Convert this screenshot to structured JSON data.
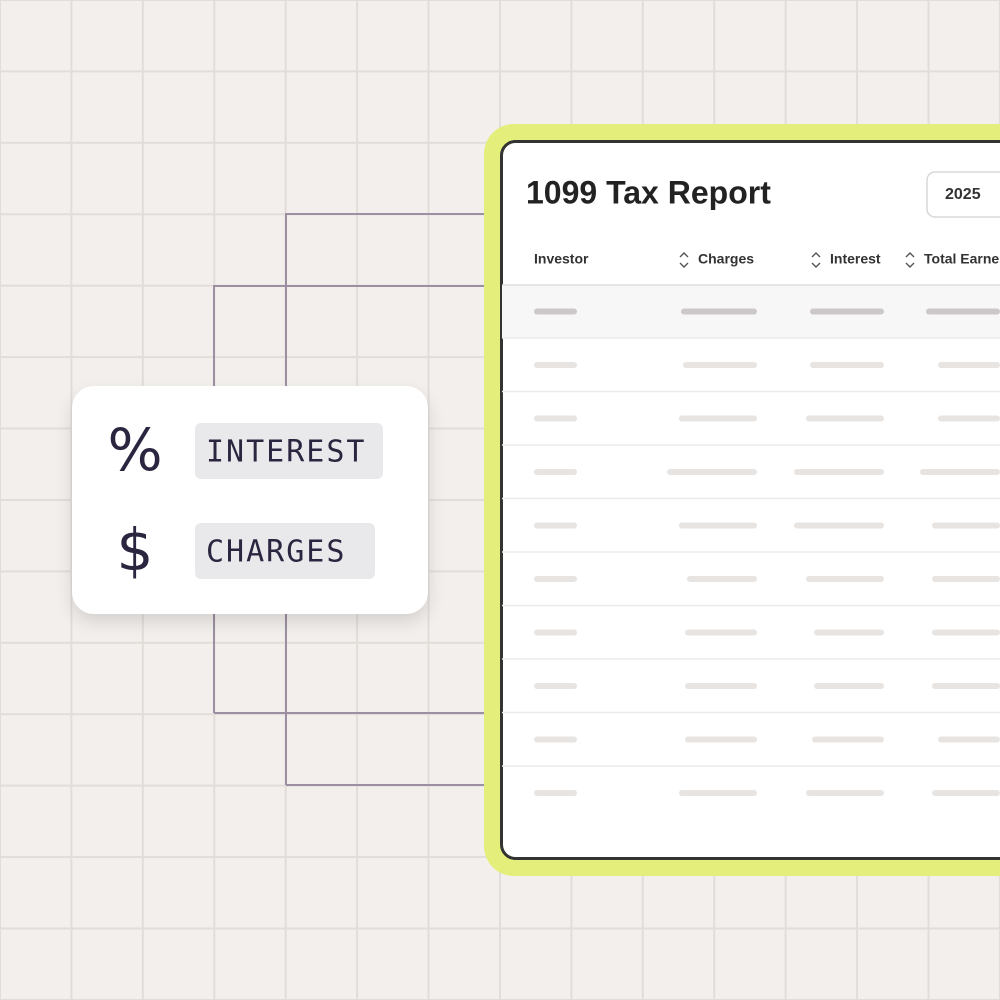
{
  "report": {
    "title": "1099 Tax Report",
    "year": "2025",
    "columns": [
      "Investor",
      "Charges",
      "Interest",
      "Total Earne"
    ]
  },
  "legend": {
    "items": [
      {
        "symbol": "%",
        "label": "INTEREST"
      },
      {
        "symbol": "$",
        "label": "CHARGES"
      }
    ]
  }
}
